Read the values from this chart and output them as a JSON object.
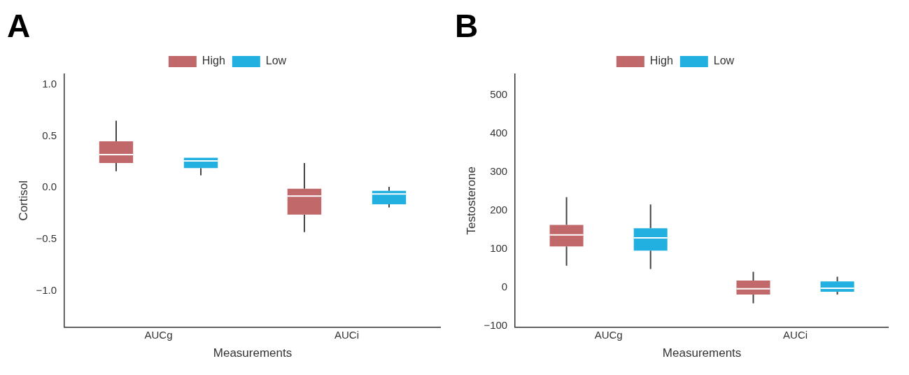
{
  "chart_data": [
    {
      "type": "box",
      "annotations": [
        "A"
      ],
      "xlabel": "Measurements",
      "ylabel": "Cortisol",
      "categories": [
        "AUCg",
        "AUCi"
      ],
      "ylim": [
        -1.35,
        1.1
      ],
      "yticks": [
        {
          "value": -1.0,
          "label": "−1.0"
        },
        {
          "value": -0.5,
          "label": "−0.5"
        },
        {
          "value": 0,
          "label": "0.0"
        },
        {
          "value": 0.5,
          "label": "0.5"
        },
        {
          "value": 1.0,
          "label": "1.0"
        }
      ],
      "grid": false,
      "legend": "top",
      "series": [
        {
          "name": "High",
          "color": "#c0686a",
          "boxes": [
            {
              "low": 0.16,
              "q1": 0.24,
              "median": 0.32,
              "q3": 0.45,
              "high": 0.65
            },
            {
              "low": -0.43,
              "q1": -0.26,
              "median": -0.08,
              "q3": -0.01,
              "high": 0.24
            }
          ]
        },
        {
          "name": "Low",
          "color": "#22b0e0",
          "boxes": [
            {
              "low": 0.12,
              "q1": 0.19,
              "median": 0.26,
              "q3": 0.29,
              "high": 0.29
            },
            {
              "low": -0.19,
              "q1": -0.16,
              "median": -0.06,
              "q3": -0.03,
              "high": 0.01
            }
          ]
        }
      ]
    },
    {
      "type": "box",
      "annotations": [
        "B"
      ],
      "xlabel": "Measurements",
      "ylabel": "Testosterone",
      "categories": [
        "AUCg",
        "AUCi"
      ],
      "ylim": [
        -103,
        555
      ],
      "yticks": [
        {
          "value": -100,
          "label": "−100"
        },
        0,
        100,
        200,
        300,
        400,
        500
      ],
      "grid": false,
      "legend": "top",
      "series": [
        {
          "name": "High",
          "color": "#c0686a",
          "boxes": [
            {
              "low": 57,
              "q1": 107,
              "median": 137,
              "q3": 163,
              "high": 235
            },
            {
              "low": -41,
              "q1": -18,
              "median": -3,
              "q3": 18,
              "high": 41
            }
          ]
        },
        {
          "name": "Low",
          "color": "#22b0e0",
          "boxes": [
            {
              "low": 48,
              "q1": 96,
              "median": 129,
              "q3": 154,
              "high": 216
            },
            {
              "low": -18,
              "q1": -11,
              "median": -2,
              "q3": 16,
              "high": 28
            }
          ]
        }
      ]
    }
  ]
}
